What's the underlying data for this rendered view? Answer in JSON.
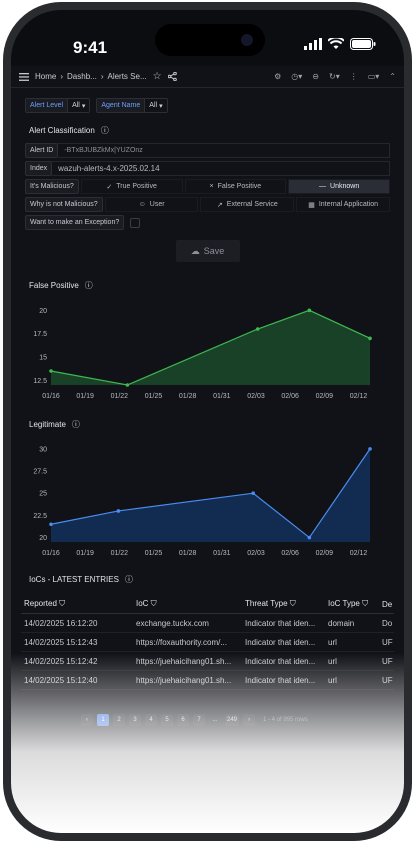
{
  "status": {
    "time": "9:41"
  },
  "topbar": {
    "crumbs": [
      "Home",
      "Dashb...",
      "Alerts Se..."
    ]
  },
  "variables": [
    {
      "label": "Alert Level",
      "value": "All"
    },
    {
      "label": "Agent Name",
      "value": "All"
    }
  ],
  "classification": {
    "title": "Alert Classification",
    "alert_id_label": "Alert ID",
    "alert_id_value": "-BTxBJUBZkMx|YUZOnz",
    "index_label": "Index",
    "index_value": "wazuh-alerts-4.x-2025.02.14",
    "malicious_label": "It's Malicious?",
    "malicious_options": [
      "True Positive",
      "False Positive",
      "Unknown"
    ],
    "why_label": "Why is not Malicious?",
    "why_options": [
      "User",
      "External Service",
      "Internal Application"
    ],
    "exception_label": "Want to make an Exception?",
    "save_label": "Save"
  },
  "charts": [
    {
      "title": "False Positive",
      "color": "#3fb950",
      "fill": "#1a4a2a",
      "chart_data": {
        "type": "area",
        "x": [
          "01/16",
          "01/19",
          "01/22",
          "01/25",
          "01/28",
          "01/31",
          "02/03",
          "02/06",
          "02/09",
          "02/12"
        ],
        "points": [
          [
            0.0,
            13.5
          ],
          [
            3.4,
            12.0
          ],
          [
            9.2,
            18.0
          ],
          [
            11.5,
            20.0
          ],
          [
            14.2,
            17.0
          ]
        ],
        "ylim": [
          12,
          21
        ],
        "yticks": [
          12.5,
          15,
          17.5,
          20
        ]
      }
    },
    {
      "title": "Legitimate",
      "color": "#4a8cf0",
      "fill": "#13305a",
      "chart_data": {
        "type": "area",
        "x": [
          "01/16",
          "01/19",
          "01/22",
          "01/25",
          "01/28",
          "01/31",
          "02/03",
          "02/06",
          "02/09",
          "02/12"
        ],
        "points": [
          [
            0.0,
            21.5
          ],
          [
            3.0,
            23.0
          ],
          [
            9.0,
            25.0
          ],
          [
            11.5,
            20.0
          ],
          [
            14.2,
            30.0
          ]
        ],
        "ylim": [
          19.5,
          31
        ],
        "yticks": [
          20,
          22.5,
          25,
          27.5,
          30
        ]
      }
    }
  ],
  "ioc": {
    "title": "IoCs - LATEST ENTRIES",
    "columns": [
      "Reported",
      "IoC",
      "Threat Type",
      "IoC Type",
      "De"
    ],
    "rows": [
      [
        "14/02/2025 16:12:20",
        "exchange.tuckx.com",
        "Indicator that iden...",
        "domain",
        "Do"
      ],
      [
        "14/02/2025 15:12:43",
        "https://foxauthority.com/...",
        "Indicator that iden...",
        "url",
        "UF"
      ],
      [
        "14/02/2025 15:12:42",
        "https://juehaicihang01.sh...",
        "Indicator that iden...",
        "url",
        "UF"
      ],
      [
        "14/02/2025 15:12:40",
        "https://juehaicihang01.sh...",
        "Indicator that iden...",
        "url",
        "UF"
      ]
    ],
    "pages": [
      "1",
      "2",
      "3",
      "4",
      "5",
      "6",
      "7",
      "...",
      "249"
    ],
    "rows_info": "1 - 4 of 995 rows"
  }
}
